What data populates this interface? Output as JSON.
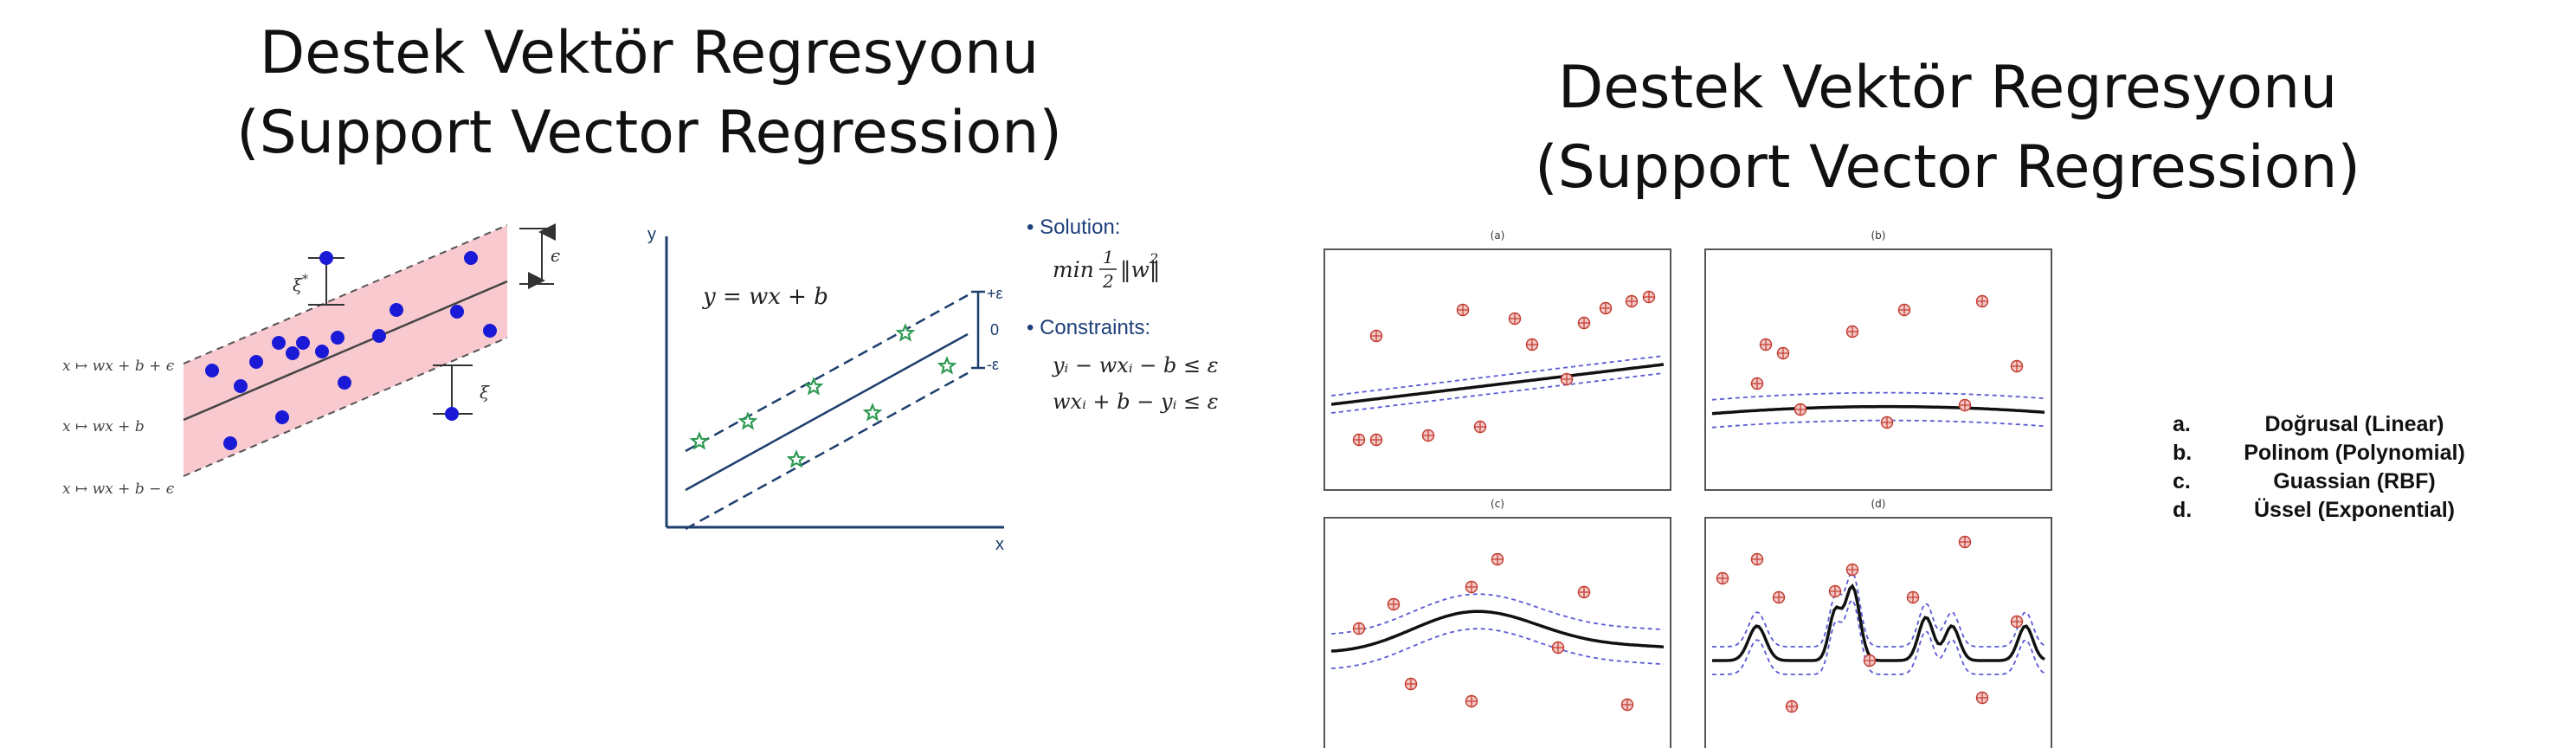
{
  "left_slide": {
    "title_line1": "Destek Vektör Regresyonu",
    "title_line2": "(Support Vector Regression)",
    "epsilon_band": {
      "upper_label": "x ↦ wx + b + ϵ",
      "middle_label": "x ↦ wx + b",
      "lower_label": "x ↦ wx + b − ϵ",
      "epsilon_label": "ϵ",
      "xi_star_label": "ξ*",
      "xi_star_base": "ξ",
      "xi_star_sup": "*",
      "xi_label": "ξ",
      "band_color": "#f9c9d0",
      "point_color": "#1a1ad6"
    },
    "linear_plot": {
      "y_axis_label": "y",
      "x_axis_label": "x",
      "equation": "y = wx + b",
      "plus_eps": "+ε",
      "zero": "0",
      "minus_eps": "-ε",
      "line_color": "#1d3f6e",
      "star_color": "#2e9a52"
    },
    "formulation": {
      "solution_label": "• Solution:",
      "objective_min": "min",
      "objective_num": "1",
      "objective_den": "2",
      "objective_norm": "‖w‖",
      "objective_sup": "2",
      "constraints_label": "• Constraints:",
      "constraint1": "yᵢ − wxᵢ − b ≤ ε",
      "constraint2": "wxᵢ + b − yᵢ ≤ ε",
      "label_color": "#1f3f7a"
    }
  },
  "right_slide": {
    "title_line1": "Destek Vektör Regresyonu",
    "title_line2": "(Support Vector Regression)",
    "panels": [
      {
        "label": "(a)",
        "kernel": "linear"
      },
      {
        "label": "(b)",
        "kernel": "polynomial"
      },
      {
        "label": "(c)",
        "kernel": "rbf"
      },
      {
        "label": "(d)",
        "kernel": "exponential"
      }
    ],
    "colors": {
      "marker": "#c0392b",
      "marker_fill": "#f4c6c6",
      "fit": "#111111",
      "margin": "#5a5ad6"
    },
    "legend": [
      {
        "letter": "a.",
        "text": "Doğrusal (Linear)"
      },
      {
        "letter": "b.",
        "text": "Polinom (Polynomial)"
      },
      {
        "letter": "c.",
        "text": "Guassian (RBF)"
      },
      {
        "letter": "d.",
        "text": "Üssel (Exponential)"
      }
    ]
  }
}
